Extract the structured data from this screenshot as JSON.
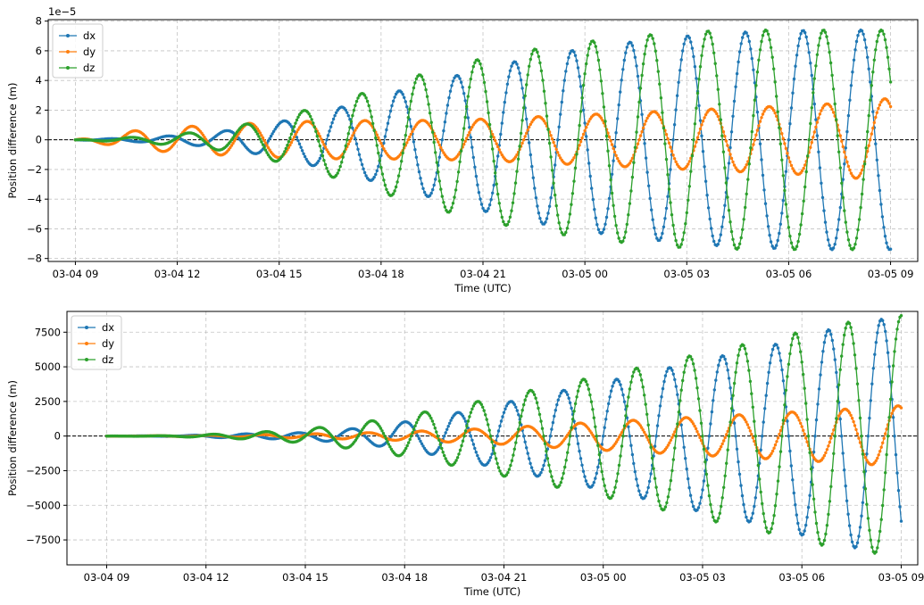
{
  "chart_data": [
    {
      "type": "line",
      "offset_text": "1e−5",
      "xlabel": "Time (UTC)",
      "ylabel": "Position difference (m)",
      "x_ticks": [
        "03-04 09",
        "03-04 12",
        "03-04 15",
        "03-04 18",
        "03-04 21",
        "03-05 00",
        "03-05 03",
        "03-05 06",
        "03-05 09"
      ],
      "xlim_hours": [
        -0.8,
        24.8
      ],
      "y_ticks": [
        -8,
        -6,
        -4,
        -2,
        0,
        2,
        4,
        6,
        8
      ],
      "y_tick_labels": [
        "−8",
        "−6",
        "−4",
        "−2",
        "0",
        "2",
        "4",
        "6",
        "8"
      ],
      "ylim": [
        -8.2,
        8.1
      ],
      "grid": true,
      "zero_line": true,
      "legend_position": "upper-left",
      "series": [
        {
          "name": "dx",
          "color": "#1f77b4",
          "period_hours": 1.7,
          "phase_hours": 0.6,
          "sign": 1,
          "envelope_t": [
            0,
            2,
            4,
            6,
            8,
            10,
            12,
            14,
            16,
            18,
            20,
            22,
            24
          ],
          "envelope_amp": [
            0.0,
            0.15,
            0.45,
            1.2,
            2.3,
            3.6,
            4.8,
            5.8,
            6.5,
            7.0,
            7.3,
            7.4,
            7.4
          ]
        },
        {
          "name": "dy",
          "color": "#ff7f0e",
          "period_hours": 1.7,
          "phase_hours": 1.3,
          "sign": 1,
          "envelope_t": [
            0,
            2,
            4,
            6,
            8,
            10,
            12,
            14,
            16,
            18,
            20,
            22,
            24
          ],
          "envelope_amp": [
            0.0,
            0.7,
            1.0,
            1.2,
            1.3,
            1.3,
            1.4,
            1.6,
            1.8,
            2.0,
            2.2,
            2.4,
            2.8
          ]
        },
        {
          "name": "dz",
          "color": "#2ca02c",
          "period_hours": 1.7,
          "phase_hours": 1.2,
          "sign": 1,
          "envelope_t": [
            0,
            2,
            4,
            6,
            8,
            10,
            12,
            14,
            16,
            18,
            20,
            22,
            24
          ],
          "envelope_amp": [
            0.0,
            0.2,
            0.6,
            1.5,
            2.8,
            4.3,
            5.5,
            6.3,
            6.9,
            7.3,
            7.4,
            7.4,
            7.4
          ]
        }
      ]
    },
    {
      "type": "line",
      "xlabel": "Time (UTC)",
      "ylabel": "Position difference (m)",
      "x_ticks": [
        "03-04 09",
        "03-04 12",
        "03-04 15",
        "03-04 18",
        "03-04 21",
        "03-05 00",
        "03-05 03",
        "03-05 06",
        "03-05 09"
      ],
      "xlim_hours": [
        -1.2,
        24.5
      ],
      "y_ticks": [
        -7500,
        -5000,
        -2500,
        0,
        2500,
        5000,
        7500
      ],
      "y_tick_labels": [
        "−7500",
        "−5000",
        "−2500",
        "0",
        "2500",
        "5000",
        "7500"
      ],
      "ylim": [
        -9300,
        9000
      ],
      "grid": true,
      "zero_line": true,
      "legend_position": "upper-left",
      "series": [
        {
          "name": "dx",
          "color": "#1f77b4",
          "period_hours": 1.6,
          "phase_hours": 0.6,
          "sign": 1,
          "envelope_t": [
            0,
            2,
            4,
            6,
            8,
            10,
            12,
            14,
            16,
            18,
            20,
            22,
            24
          ],
          "envelope_amp": [
            0,
            20,
            150,
            250,
            650,
            1400,
            2400,
            3400,
            4400,
            5500,
            6500,
            7800,
            8700
          ]
        },
        {
          "name": "dy",
          "color": "#ff7f0e",
          "period_hours": 1.6,
          "phase_hours": 1.1,
          "sign": 1,
          "envelope_t": [
            0,
            2,
            4,
            6,
            8,
            10,
            12,
            14,
            16,
            18,
            20,
            22,
            24
          ],
          "envelope_amp": [
            0,
            30,
            80,
            150,
            250,
            400,
            600,
            900,
            1150,
            1400,
            1650,
            1900,
            2200
          ]
        },
        {
          "name": "dz",
          "color": "#2ca02c",
          "period_hours": 1.6,
          "phase_hours": 1.2,
          "sign": 1,
          "envelope_t": [
            0,
            2,
            4,
            6,
            8,
            10,
            12,
            14,
            16,
            18,
            20,
            22,
            24
          ],
          "envelope_amp": [
            0,
            30,
            200,
            500,
            1100,
            1900,
            2900,
            3900,
            4900,
            6000,
            7000,
            8100,
            8700
          ]
        }
      ]
    }
  ]
}
